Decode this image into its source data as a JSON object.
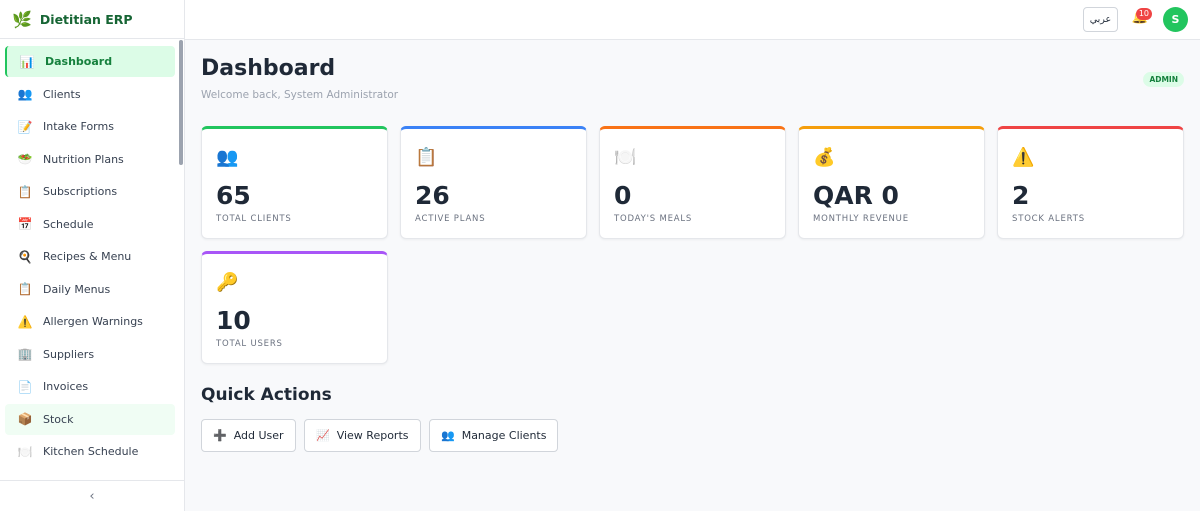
{
  "brand": {
    "icon": "🌿",
    "name": "Dietitian ERP"
  },
  "nav": [
    {
      "icon": "📊",
      "label": "Dashboard",
      "state": "active"
    },
    {
      "icon": "👥",
      "label": "Clients"
    },
    {
      "icon": "📝",
      "label": "Intake Forms"
    },
    {
      "icon": "🥗",
      "label": "Nutrition Plans"
    },
    {
      "icon": "📋",
      "label": "Subscriptions"
    },
    {
      "icon": "📅",
      "label": "Schedule"
    },
    {
      "icon": "🍳",
      "label": "Recipes & Menu"
    },
    {
      "icon": "📋",
      "label": "Daily Menus"
    },
    {
      "icon": "⚠️",
      "label": "Allergen Warnings"
    },
    {
      "icon": "🏢",
      "label": "Suppliers"
    },
    {
      "icon": "📄",
      "label": "Invoices"
    },
    {
      "icon": "📦",
      "label": "Stock",
      "state": "hover"
    },
    {
      "icon": "🍽️",
      "label": "Kitchen Schedule"
    }
  ],
  "collapse": "‹",
  "topbar": {
    "language": "عربي",
    "bell": "🔔",
    "notifications": 10,
    "avatar": "S"
  },
  "header": {
    "title": "Dashboard",
    "subtitle": "Welcome back, System Administrator",
    "role": "ADMIN"
  },
  "stats": [
    {
      "icon": "👥",
      "value": 65,
      "label": "TOTAL CLIENTS",
      "color": "#22c55e"
    },
    {
      "icon": "📋",
      "value": 26,
      "label": "ACTIVE PLANS",
      "color": "#3b82f6"
    },
    {
      "icon": "🍽️",
      "value": 0,
      "label": "TODAY'S MEALS",
      "color": "#f97316"
    },
    {
      "icon": "💰",
      "value": "QAR 0",
      "label": "MONTHLY REVENUE",
      "color": "#f59e0b"
    },
    {
      "icon": "⚠️",
      "value": 2,
      "label": "STOCK ALERTS",
      "color": "#ef4444"
    },
    {
      "icon": "🔑",
      "value": 10,
      "label": "TOTAL USERS",
      "color": "#a855f7"
    }
  ],
  "quick_actions": {
    "title": "Quick Actions",
    "buttons": [
      {
        "icon": "➕",
        "label": "Add User"
      },
      {
        "icon": "📈",
        "label": "View Reports"
      },
      {
        "icon": "👥",
        "label": "Manage Clients"
      }
    ]
  }
}
